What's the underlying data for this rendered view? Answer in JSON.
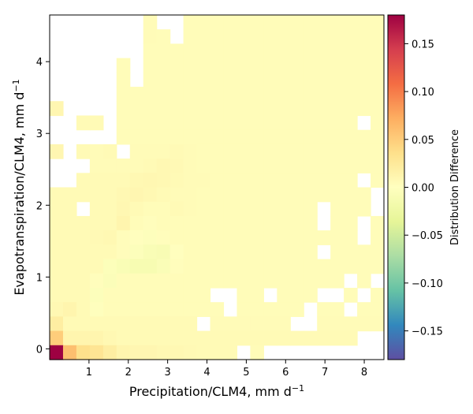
{
  "chart_data": {
    "type": "heatmap",
    "title": "",
    "xlabel": "Precipitation/CLM4,  mm d",
    "xlabel_sup": "−1",
    "ylabel": "Evapotranspiration/CLM4,  mm d",
    "ylabel_sup": "−1",
    "xlim": [
      0,
      8.5
    ],
    "ylim": [
      -0.15,
      4.65
    ],
    "x_ticks": [
      1,
      2,
      3,
      4,
      5,
      6,
      7,
      8
    ],
    "x_tick_labels": [
      "1",
      "2",
      "3",
      "4",
      "5",
      "6",
      "7",
      "8"
    ],
    "y_ticks": [
      0,
      1,
      2,
      3,
      4
    ],
    "y_tick_labels": [
      "0",
      "1",
      "2",
      "3",
      "4"
    ],
    "colorbar": {
      "label": "Distribution Difference",
      "colormap": "Spectral_r",
      "vmin": -0.18,
      "vmax": 0.18,
      "ticks": [
        -0.15,
        -0.1,
        -0.05,
        0.0,
        0.05,
        0.1,
        0.15
      ],
      "tick_labels": [
        "−0.15",
        "−0.10",
        "−0.05",
        "0.00",
        "0.05",
        "0.10",
        "0.15"
      ]
    },
    "grid": false,
    "grid_shape": {
      "cols": 25,
      "rows": 24
    },
    "cell_values_note": "rows listed from top (high ET) to bottom (low ET); null = empty bin",
    "cells": [
      [
        null,
        null,
        null,
        null,
        null,
        null,
        null,
        0.005,
        null,
        null,
        0.004,
        0.004,
        0.004,
        0.004,
        0.004,
        0.004,
        0.004,
        0.004,
        0.004,
        0.004,
        0.004,
        0.004,
        0.004,
        0.004,
        0.004
      ],
      [
        null,
        null,
        null,
        null,
        null,
        null,
        null,
        0.005,
        0.004,
        null,
        0.004,
        0.004,
        0.004,
        0.004,
        0.004,
        0.004,
        0.004,
        0.004,
        0.004,
        0.004,
        0.004,
        0.004,
        0.004,
        0.004,
        0.004
      ],
      [
        null,
        null,
        null,
        null,
        null,
        null,
        null,
        0.004,
        0.004,
        0.004,
        0.004,
        0.004,
        0.004,
        0.004,
        0.004,
        0.004,
        0.004,
        0.004,
        0.004,
        0.004,
        0.004,
        0.004,
        0.004,
        0.004,
        0.004
      ],
      [
        null,
        null,
        null,
        null,
        null,
        0.004,
        null,
        0.004,
        0.004,
        0.004,
        0.004,
        0.004,
        0.004,
        0.004,
        0.004,
        0.004,
        0.004,
        0.004,
        0.004,
        0.004,
        0.004,
        0.004,
        0.004,
        0.004,
        0.004
      ],
      [
        null,
        null,
        null,
        null,
        null,
        0.004,
        null,
        0.004,
        0.004,
        0.004,
        0.004,
        0.004,
        0.004,
        0.004,
        0.004,
        0.004,
        0.004,
        0.004,
        0.004,
        0.004,
        0.004,
        0.004,
        0.004,
        0.004,
        0.004
      ],
      [
        null,
        null,
        null,
        null,
        null,
        0.004,
        0.004,
        0.004,
        0.004,
        0.004,
        0.004,
        0.004,
        0.004,
        0.004,
        0.004,
        0.004,
        0.004,
        0.004,
        0.004,
        0.004,
        0.004,
        0.004,
        0.004,
        0.004,
        0.004
      ],
      [
        0.01,
        null,
        null,
        null,
        null,
        0.004,
        0.004,
        0.004,
        0.004,
        0.004,
        0.004,
        0.004,
        0.004,
        0.004,
        0.004,
        0.004,
        0.004,
        0.004,
        0.004,
        0.004,
        0.004,
        0.004,
        0.004,
        0.004,
        0.004
      ],
      [
        null,
        null,
        0.006,
        0.006,
        null,
        0.004,
        0.004,
        0.004,
        0.004,
        0.004,
        0.004,
        0.004,
        0.004,
        0.004,
        0.004,
        0.004,
        0.004,
        0.004,
        0.004,
        0.004,
        0.004,
        0.004,
        0.004,
        null,
        0.004
      ],
      [
        null,
        null,
        null,
        null,
        null,
        0.004,
        0.004,
        0.004,
        0.004,
        0.004,
        0.004,
        0.004,
        0.004,
        0.004,
        0.004,
        0.004,
        0.004,
        0.004,
        0.004,
        0.004,
        0.004,
        0.004,
        0.004,
        0.004,
        0.004
      ],
      [
        0.01,
        null,
        0.006,
        0.005,
        0.006,
        null,
        0.005,
        0.005,
        0.005,
        0.006,
        0.005,
        0.004,
        0.004,
        0.004,
        0.004,
        0.004,
        0.004,
        0.004,
        0.004,
        0.004,
        0.004,
        0.004,
        0.004,
        0.004,
        0.004
      ],
      [
        null,
        null,
        null,
        0.005,
        0.005,
        0.005,
        0.005,
        0.006,
        0.008,
        0.007,
        0.005,
        0.004,
        0.004,
        0.004,
        0.004,
        0.004,
        0.004,
        0.004,
        0.004,
        0.004,
        0.004,
        0.004,
        0.004,
        0.004,
        0.004
      ],
      [
        null,
        null,
        0.006,
        0.006,
        0.006,
        0.006,
        0.008,
        0.009,
        0.008,
        0.006,
        0.005,
        0.005,
        0.004,
        0.004,
        0.004,
        0.004,
        0.004,
        0.004,
        0.004,
        0.004,
        0.004,
        0.004,
        0.004,
        null,
        0.004
      ],
      [
        0.006,
        0.006,
        0.006,
        0.006,
        0.006,
        0.008,
        0.01,
        0.008,
        0.006,
        0.005,
        0.005,
        0.004,
        0.004,
        0.004,
        0.004,
        0.004,
        0.004,
        0.004,
        0.004,
        0.004,
        0.004,
        0.004,
        0.004,
        0.004,
        null
      ],
      [
        0.006,
        0.006,
        null,
        0.006,
        0.006,
        0.009,
        0.006,
        0.004,
        0.004,
        0.006,
        0.005,
        0.004,
        0.004,
        0.004,
        0.004,
        0.004,
        0.004,
        0.004,
        0.004,
        0.004,
        null,
        0.004,
        0.004,
        0.004,
        null
      ],
      [
        0.006,
        0.006,
        0.006,
        0.006,
        0.006,
        0.012,
        0.004,
        0.002,
        0.004,
        0.004,
        0.004,
        0.004,
        0.004,
        0.004,
        0.004,
        0.004,
        0.004,
        0.004,
        0.004,
        0.004,
        null,
        0.004,
        0.004,
        null,
        0.004
      ],
      [
        0.006,
        0.006,
        0.006,
        0.007,
        0.008,
        0.003,
        0.001,
        -0.003,
        0.002,
        0.004,
        0.004,
        0.004,
        0.004,
        0.004,
        0.004,
        0.004,
        0.004,
        0.004,
        0.004,
        0.004,
        0.004,
        0.004,
        0.004,
        null,
        0.004
      ],
      [
        0.006,
        0.006,
        0.006,
        0.006,
        0.006,
        0.003,
        -0.004,
        -0.008,
        -0.01,
        0.001,
        0.004,
        0.004,
        0.004,
        0.004,
        0.004,
        0.004,
        0.004,
        0.004,
        0.004,
        0.004,
        null,
        0.004,
        0.004,
        0.004,
        0.004
      ],
      [
        0.006,
        0.006,
        0.006,
        0.006,
        -0.005,
        -0.008,
        -0.012,
        -0.012,
        -0.007,
        0.002,
        0.004,
        0.004,
        0.004,
        0.004,
        0.004,
        0.004,
        0.004,
        0.004,
        0.004,
        0.004,
        0.004,
        0.004,
        0.004,
        0.004,
        0.004
      ],
      [
        0.006,
        0.006,
        0.006,
        0.002,
        -0.006,
        0.004,
        0.004,
        0.004,
        0.004,
        0.004,
        0.004,
        0.004,
        0.004,
        0.004,
        0.004,
        0.004,
        0.004,
        0.004,
        0.004,
        0.004,
        0.004,
        0.004,
        null,
        0.004,
        null
      ],
      [
        0.006,
        0.006,
        0.006,
        -0.004,
        0.004,
        0.004,
        0.004,
        0.004,
        0.004,
        0.004,
        0.004,
        0.004,
        null,
        null,
        0.004,
        0.004,
        null,
        0.004,
        0.004,
        0.004,
        null,
        null,
        0.004,
        null,
        0.004
      ],
      [
        0.008,
        0.012,
        0.006,
        -0.002,
        0.004,
        0.004,
        0.004,
        0.004,
        0.004,
        0.004,
        0.004,
        0.004,
        0.004,
        null,
        0.004,
        0.004,
        0.004,
        0.004,
        0.004,
        null,
        0.004,
        0.004,
        null,
        0.004,
        0.004
      ],
      [
        0.02,
        0.006,
        0.006,
        0.006,
        0.006,
        0.006,
        0.006,
        0.006,
        0.006,
        0.006,
        0.006,
        null,
        0.005,
        0.005,
        0.005,
        0.005,
        0.005,
        0.005,
        null,
        null,
        0.005,
        0.005,
        0.005,
        0.005,
        0.005
      ],
      [
        0.05,
        0.012,
        0.012,
        0.012,
        0.008,
        0.006,
        0.006,
        0.006,
        0.006,
        0.006,
        0.006,
        0.006,
        0.006,
        0.006,
        0.006,
        0.006,
        0.006,
        0.006,
        0.006,
        0.006,
        0.006,
        0.006,
        0.006,
        null,
        null
      ],
      [
        0.18,
        0.06,
        0.035,
        0.03,
        0.02,
        0.012,
        0.01,
        0.01,
        0.008,
        0.008,
        0.007,
        0.006,
        0.006,
        0.006,
        null,
        0.005,
        null,
        null,
        null,
        null,
        null,
        null,
        null,
        null,
        null
      ]
    ]
  }
}
